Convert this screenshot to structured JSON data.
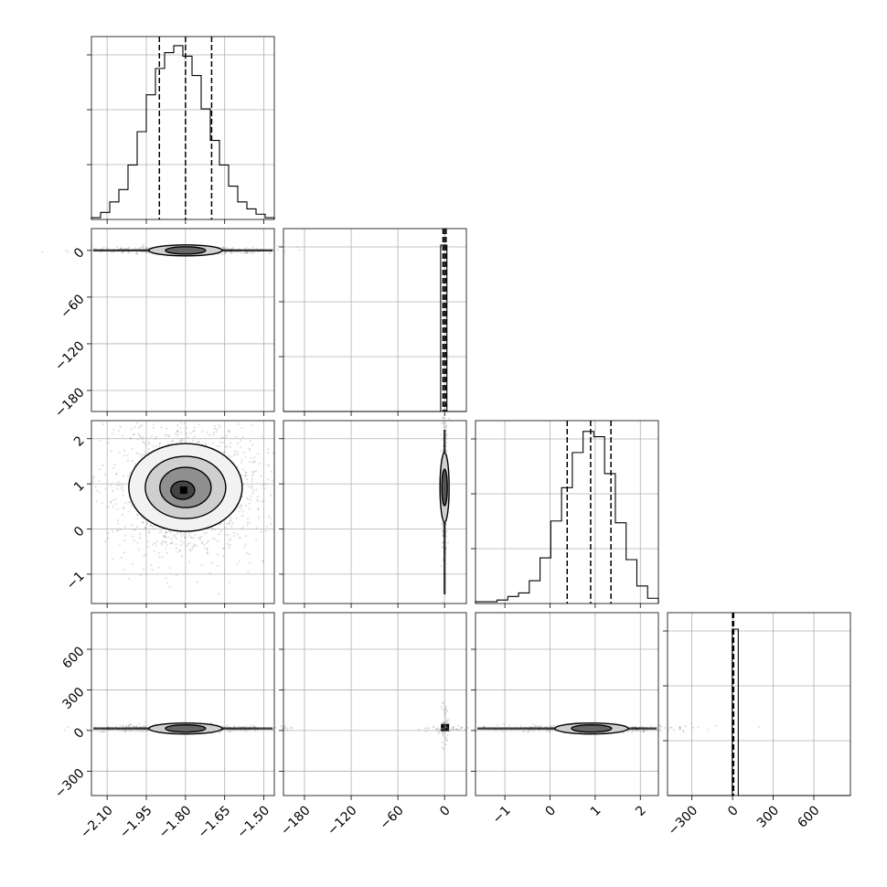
{
  "chart_data": {
    "type": "corner",
    "grid": true,
    "quantile_lines": "dashed",
    "contour_levels": 4,
    "parameters": [
      {
        "range": [
          -2.16,
          -1.46
        ],
        "ticks": [
          -2.1,
          -1.95,
          -1.8,
          -1.65,
          -1.5
        ],
        "tick_labels": [
          "−2.10",
          "−1.95",
          "−1.80",
          "−1.65",
          "−1.50"
        ],
        "quantiles": [
          -1.9,
          -1.8,
          -1.7
        ],
        "center": -1.8,
        "sigma": 0.095,
        "hist": [
          0.01,
          0.04,
          0.1,
          0.17,
          0.31,
          0.5,
          0.71,
          0.86,
          0.95,
          0.99,
          0.93,
          0.82,
          0.63,
          0.45,
          0.31,
          0.19,
          0.1,
          0.06,
          0.03,
          0.01
        ]
      },
      {
        "range": [
          -207,
          28
        ],
        "ticks": [
          -180,
          -120,
          -60,
          0
        ],
        "tick_labels": [
          "−180",
          "−120",
          "−60",
          "0"
        ],
        "quantiles": [
          -2,
          0,
          2
        ],
        "center": 0,
        "sigma": 3,
        "hist": [
          0.01,
          0.98,
          0.02
        ]
      },
      {
        "range": [
          -1.65,
          2.4
        ],
        "ticks": [
          -1,
          0,
          1,
          2
        ],
        "tick_labels": [
          "−1",
          "0",
          "1",
          "2"
        ],
        "quantiles": [
          0.38,
          0.9,
          1.35
        ],
        "center": 0.92,
        "sigma": 0.48,
        "hist": [
          0.01,
          0.01,
          0.02,
          0.04,
          0.06,
          0.13,
          0.26,
          0.47,
          0.66,
          0.86,
          0.98,
          0.95,
          0.74,
          0.46,
          0.25,
          0.1,
          0.03
        ]
      },
      {
        "range": [
          -480,
          870
        ],
        "ticks": [
          -300,
          0,
          300,
          600
        ],
        "tick_labels": [
          "−300",
          "0",
          "300",
          "600"
        ],
        "quantiles": [
          0,
          5,
          8
        ],
        "center": 15,
        "sigma": 12,
        "hist": [
          0.98
        ]
      }
    ]
  }
}
